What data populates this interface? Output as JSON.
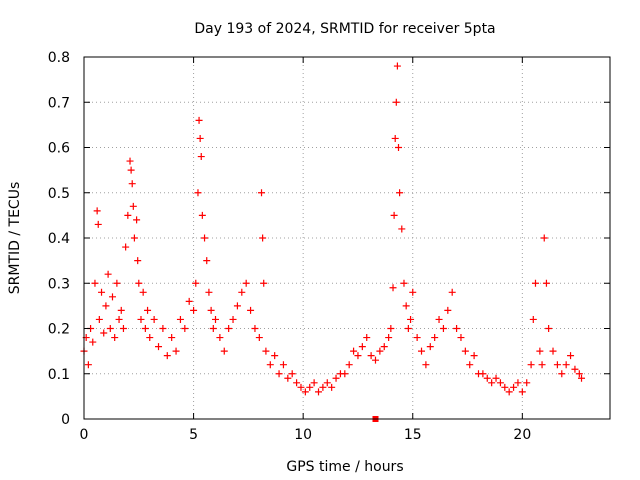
{
  "chart_data": {
    "type": "scatter",
    "title": "Day 193 of 2024, SRMTID for receiver 5pta",
    "xlabel": "GPS time / hours",
    "ylabel": "SRMTID / TECUs",
    "xlim": [
      0,
      24
    ],
    "ylim": [
      0,
      0.8
    ],
    "x_ticks": [
      "0",
      "5",
      "10",
      "15",
      "20"
    ],
    "y_ticks": [
      "0",
      "0.1",
      "0.2",
      "0.3",
      "0.4",
      "0.5",
      "0.6",
      "0.7",
      "0.8"
    ],
    "grid": true,
    "marker": "+",
    "marker_color": "#ff0000",
    "series": [
      {
        "name": "SRMTID",
        "x": [
          0.0,
          0.1,
          0.2,
          0.3,
          0.4,
          0.5,
          0.6,
          0.65,
          0.7,
          0.8,
          0.9,
          1.0,
          1.1,
          1.2,
          1.3,
          1.4,
          1.5,
          1.6,
          1.7,
          1.8,
          1.9,
          2.0,
          2.1,
          2.15,
          2.2,
          2.25,
          2.3,
          2.4,
          2.45,
          2.5,
          2.6,
          2.7,
          2.8,
          2.9,
          3.0,
          3.2,
          3.4,
          3.6,
          3.8,
          4.0,
          4.2,
          4.4,
          4.6,
          4.8,
          5.0,
          5.1,
          5.2,
          5.25,
          5.3,
          5.35,
          5.4,
          5.5,
          5.6,
          5.7,
          5.8,
          5.9,
          6.0,
          6.2,
          6.4,
          6.6,
          6.8,
          7.0,
          7.2,
          7.4,
          7.6,
          7.8,
          8.0,
          8.1,
          8.15,
          8.2,
          8.3,
          8.5,
          8.7,
          8.9,
          9.1,
          9.3,
          9.5,
          9.7,
          9.9,
          10.1,
          10.3,
          10.5,
          10.7,
          10.9,
          11.1,
          11.3,
          11.5,
          11.7,
          11.9,
          12.1,
          12.3,
          12.5,
          12.7,
          12.9,
          13.1,
          13.3,
          13.5,
          13.7,
          13.9,
          14.0,
          14.1,
          14.15,
          14.2,
          14.25,
          14.3,
          14.35,
          14.4,
          14.5,
          14.6,
          14.7,
          14.8,
          14.9,
          15.0,
          15.2,
          15.4,
          15.6,
          15.8,
          16.0,
          16.2,
          16.4,
          16.6,
          16.8,
          17.0,
          17.2,
          17.4,
          17.6,
          17.8,
          18.0,
          18.2,
          18.4,
          18.6,
          18.8,
          19.0,
          19.2,
          19.4,
          19.6,
          19.8,
          20.0,
          20.2,
          20.4,
          20.5,
          20.6,
          20.8,
          20.9,
          21.0,
          21.1,
          21.2,
          21.4,
          21.6,
          21.8,
          22.0,
          22.2,
          22.4,
          22.6,
          22.7
        ],
        "y": [
          0.15,
          0.18,
          0.12,
          0.2,
          0.17,
          0.3,
          0.46,
          0.43,
          0.22,
          0.28,
          0.19,
          0.25,
          0.32,
          0.2,
          0.27,
          0.18,
          0.3,
          0.22,
          0.24,
          0.2,
          0.38,
          0.45,
          0.57,
          0.55,
          0.52,
          0.47,
          0.4,
          0.44,
          0.35,
          0.3,
          0.22,
          0.28,
          0.2,
          0.24,
          0.18,
          0.22,
          0.16,
          0.2,
          0.14,
          0.18,
          0.15,
          0.22,
          0.2,
          0.26,
          0.24,
          0.3,
          0.5,
          0.66,
          0.62,
          0.58,
          0.45,
          0.4,
          0.35,
          0.28,
          0.24,
          0.2,
          0.22,
          0.18,
          0.15,
          0.2,
          0.22,
          0.25,
          0.28,
          0.3,
          0.24,
          0.2,
          0.18,
          0.5,
          0.4,
          0.3,
          0.15,
          0.12,
          0.14,
          0.1,
          0.12,
          0.09,
          0.1,
          0.08,
          0.07,
          0.06,
          0.07,
          0.08,
          0.06,
          0.07,
          0.08,
          0.07,
          0.09,
          0.1,
          0.1,
          0.12,
          0.15,
          0.14,
          0.16,
          0.18,
          0.14,
          0.13,
          0.15,
          0.16,
          0.18,
          0.2,
          0.29,
          0.45,
          0.62,
          0.7,
          0.78,
          0.6,
          0.5,
          0.42,
          0.3,
          0.25,
          0.2,
          0.22,
          0.28,
          0.18,
          0.15,
          0.12,
          0.16,
          0.18,
          0.22,
          0.2,
          0.24,
          0.28,
          0.2,
          0.18,
          0.15,
          0.12,
          0.14,
          0.1,
          0.1,
          0.09,
          0.08,
          0.09,
          0.08,
          0.07,
          0.06,
          0.07,
          0.08,
          0.06,
          0.08,
          0.12,
          0.22,
          0.3,
          0.15,
          0.12,
          0.4,
          0.3,
          0.2,
          0.15,
          0.12,
          0.1,
          0.12,
          0.14,
          0.11,
          0.1,
          0.09
        ],
        "special_marker": {
          "x": 13.3,
          "y": 0.0,
          "shape": "square"
        }
      }
    ]
  }
}
